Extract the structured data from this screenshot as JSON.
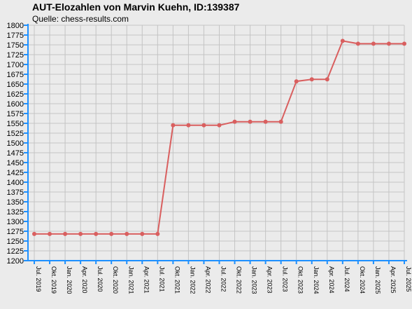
{
  "chart_data": {
    "type": "line",
    "title": "AUT-Elozahlen von Marvin Kuehn, ID:139387",
    "subtitle": "Quelle: chess-results.com",
    "xlabel": "",
    "ylabel": "",
    "ylim": [
      1200,
      1800
    ],
    "ytick_step": 25,
    "grid": true,
    "categories": [
      "Jul. 2019",
      "Okt. 2019",
      "Jan. 2020",
      "Apr. 2020",
      "Jul. 2020",
      "Okt. 2020",
      "Jan. 2021",
      "Apr. 2021",
      "Jul. 2021",
      "Okt. 2021",
      "Jan. 2022",
      "Apr. 2022",
      "Jul. 2022",
      "Okt. 2022",
      "Jan. 2023",
      "Apr. 2023",
      "Jul. 2023",
      "Okt. 2023",
      "Jan. 2024",
      "Apr. 2024",
      "Jul. 2024",
      "Okt. 2024",
      "Jan. 2025",
      "Apr. 2025",
      "Jul. 2025"
    ],
    "series": [
      {
        "values": [
          1268,
          1268,
          1268,
          1268,
          1268,
          1268,
          1268,
          1268,
          1268,
          1545,
          1545,
          1545,
          1545,
          1554,
          1554,
          1554,
          1554,
          1657,
          1662,
          1662,
          1760,
          1753,
          1753,
          1753,
          1753
        ]
      }
    ],
    "colors": {
      "line": "#d95f5f",
      "axis": "#1e90ff",
      "grid": "#c4c4c4",
      "background": "#ebebeb"
    }
  }
}
